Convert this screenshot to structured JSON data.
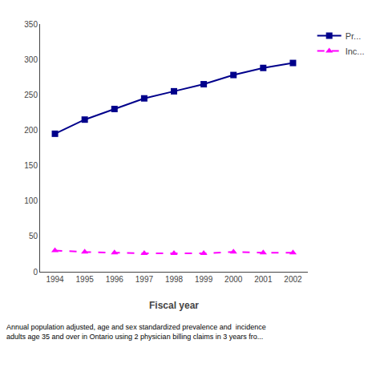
{
  "chart_data": {
    "type": "line",
    "x": [
      1994,
      1995,
      1996,
      1997,
      1998,
      1999,
      2000,
      2001,
      2002
    ],
    "series": [
      {
        "name": "Pr...",
        "color": "#00008B",
        "marker": "square",
        "line_style": "solid",
        "values": [
          195,
          215,
          230,
          245,
          255,
          265,
          278,
          288,
          295
        ]
      },
      {
        "name": "Inc...",
        "color": "#FF00FF",
        "marker": "triangle-up",
        "line_style": "dashed",
        "values": [
          30,
          28,
          27,
          26,
          26,
          26,
          28,
          27,
          27
        ]
      }
    ],
    "xlabel": "Fiscal year",
    "xlim": [
      1993.5,
      2002.5
    ],
    "xticks": [
      1994,
      1995,
      1996,
      1997,
      1998,
      1999,
      2000,
      2001,
      2002
    ],
    "ylim": [
      0,
      350
    ],
    "yticks": [
      0,
      50,
      100,
      150,
      200,
      250,
      300,
      350
    ],
    "grid": false,
    "legend": "right",
    "annotations": [
      "Annual population adjusted, age and sex standardized prevalence and  incidence\nadults age 35 and over in Ontario using 2 physician billing claims in 3 years fro..."
    ]
  }
}
